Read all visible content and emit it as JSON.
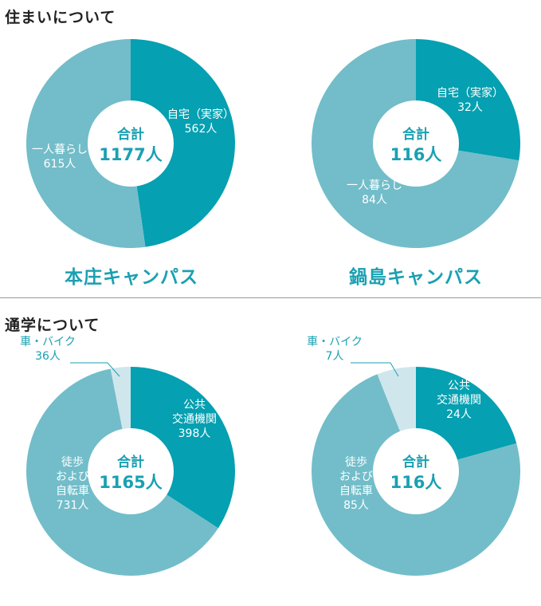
{
  "sections": {
    "housing_title": "住まいについて",
    "commute_title": "通学について"
  },
  "campuses": {
    "left": "本庄キャンパス",
    "right": "鍋島キャンパス"
  },
  "colors": {
    "dark_teal": "#05a0b1",
    "light_teal": "#72bdc9",
    "pale_teal": "#cfe6ec",
    "label_on_slice": "#ffffff",
    "total_text": "#1aa0b2",
    "callout_text": "#1aa0b2"
  },
  "chart_data": [
    {
      "type": "pie",
      "section": "住まいについて",
      "campus": "本庄キャンパス",
      "total_label": "合計",
      "total_value": "1177人",
      "slices": [
        {
          "label_lines": [
            "自宅（実家）",
            "562人"
          ],
          "value": 562
        },
        {
          "label_lines": [
            "一人暮らし",
            "615人"
          ],
          "value": 615
        }
      ]
    },
    {
      "type": "pie",
      "section": "住まいについて",
      "campus": "鍋島キャンパス",
      "total_label": "合計",
      "total_value": "116人",
      "slices": [
        {
          "label_lines": [
            "自宅（実家）",
            "32人"
          ],
          "value": 32
        },
        {
          "label_lines": [
            "一人暮らし",
            "84人"
          ],
          "value": 84
        }
      ]
    },
    {
      "type": "pie",
      "section": "通学について",
      "campus": "本庄キャンパス",
      "total_label": "合計",
      "total_value": "1165人",
      "slices": [
        {
          "label_lines": [
            "公共",
            "交通機関",
            "398人"
          ],
          "value": 398
        },
        {
          "label_lines": [
            "徒歩",
            "および",
            "自転車",
            "731人"
          ],
          "value": 731
        },
        {
          "label_lines": [
            "車・バイク",
            "36人"
          ],
          "value": 36
        }
      ]
    },
    {
      "type": "pie",
      "section": "通学について",
      "campus": "鍋島キャンパス",
      "total_label": "合計",
      "total_value": "116人",
      "slices": [
        {
          "label_lines": [
            "公共",
            "交通機関",
            "24人"
          ],
          "value": 24
        },
        {
          "label_lines": [
            "徒歩",
            "および",
            "自転車",
            "85人"
          ],
          "value": 85
        },
        {
          "label_lines": [
            "車・バイク",
            "7人"
          ],
          "value": 7
        }
      ]
    }
  ]
}
